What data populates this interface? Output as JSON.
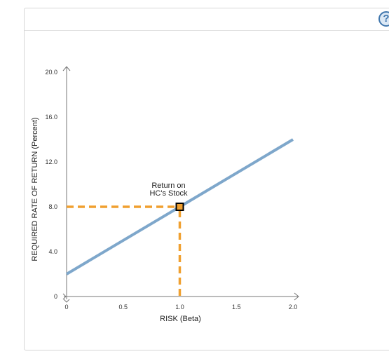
{
  "help": {
    "label": "?"
  },
  "chart_data": {
    "type": "line",
    "xlabel": "RISK (Beta)",
    "ylabel": "REQUIRED RATE OF RETURN (Percent)",
    "xlim": [
      0,
      2.0
    ],
    "ylim": [
      0,
      20.0
    ],
    "x_ticks": [
      "0",
      "0.5",
      "1.0",
      "1.5",
      "2.0"
    ],
    "x_tick_values": [
      0,
      0.5,
      1.0,
      1.5,
      2.0
    ],
    "y_ticks": [
      "0",
      "4.0",
      "8.0",
      "12.0",
      "16.0",
      "20.0"
    ],
    "y_tick_values": [
      0,
      4,
      8,
      12,
      16,
      20
    ],
    "series": [
      {
        "x": [
          0,
          2.0
        ],
        "y": [
          2.0,
          14.0
        ],
        "color": "#7ea7cb"
      }
    ],
    "highlight_point": {
      "x": 1.0,
      "y": 8.0,
      "color": "#f0a030"
    },
    "annotation": {
      "line1": "Return on",
      "line2": "HC's Stock"
    },
    "grid": false
  }
}
